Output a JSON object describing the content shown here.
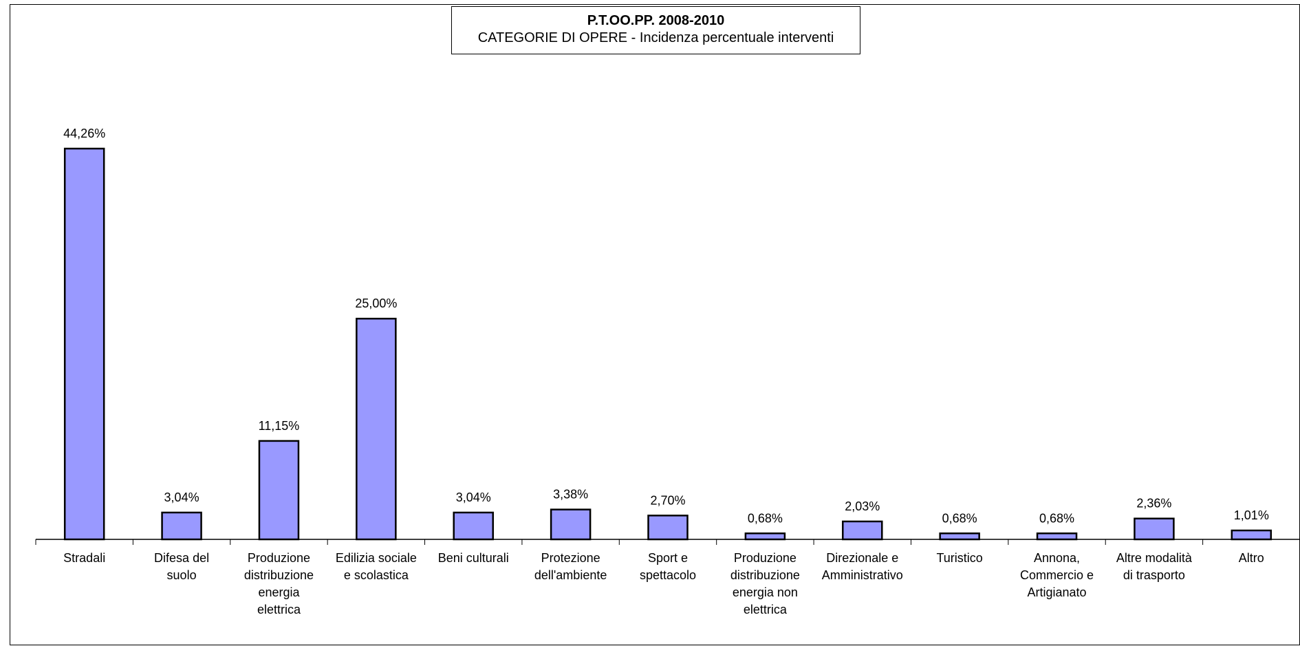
{
  "chart_data": {
    "type": "bar",
    "title": "P.T.OO.PP. 2008-2010",
    "subtitle": "CATEGORIE DI OPERE - Incidenza percentuale interventi",
    "categories": [
      "Stradali",
      "Difesa del suolo",
      "Produzione distribuzione energia elettrica",
      "Edilizia sociale e scolastica",
      "Beni culturali",
      "Protezione dell'ambiente",
      "Sport e spettacolo",
      "Produzione distribuzione energia non elettrica",
      "Direzionale e Amministrativo",
      "Turistico",
      "Annona, Commercio e Artigianato",
      "Altre modalità di trasporto",
      "Altro"
    ],
    "category_lines": [
      [
        "Stradali"
      ],
      [
        "Difesa del",
        "suolo"
      ],
      [
        "Produzione",
        "distribuzione",
        "energia",
        "elettrica"
      ],
      [
        "Edilizia sociale",
        "e scolastica"
      ],
      [
        "Beni culturali"
      ],
      [
        "Protezione",
        "dell'ambiente"
      ],
      [
        "Sport e",
        "spettacolo"
      ],
      [
        "Produzione",
        "distribuzione",
        "energia non",
        "elettrica"
      ],
      [
        "Direzionale e",
        "Amministrativo"
      ],
      [
        "Turistico"
      ],
      [
        "Annona,",
        "Commercio e",
        "Artigianato"
      ],
      [
        "Altre modalità",
        "di trasporto"
      ],
      [
        "Altro"
      ]
    ],
    "values": [
      44.26,
      3.04,
      11.15,
      25.0,
      3.04,
      3.38,
      2.7,
      0.68,
      2.03,
      0.68,
      0.68,
      2.36,
      1.01
    ],
    "value_labels": [
      "44,26%",
      "3,04%",
      "11,15%",
      "25,00%",
      "3,04%",
      "3,38%",
      "2,70%",
      "0,68%",
      "2,03%",
      "0,68%",
      "0,68%",
      "2,36%",
      "1,01%"
    ],
    "xlabel": "",
    "ylabel": "",
    "ylim": [
      0,
      50
    ],
    "grid": false,
    "legend": "none",
    "colors": {
      "bar_fill": "#9999FF",
      "bar_stroke": "#000000",
      "axis": "#000000"
    }
  }
}
